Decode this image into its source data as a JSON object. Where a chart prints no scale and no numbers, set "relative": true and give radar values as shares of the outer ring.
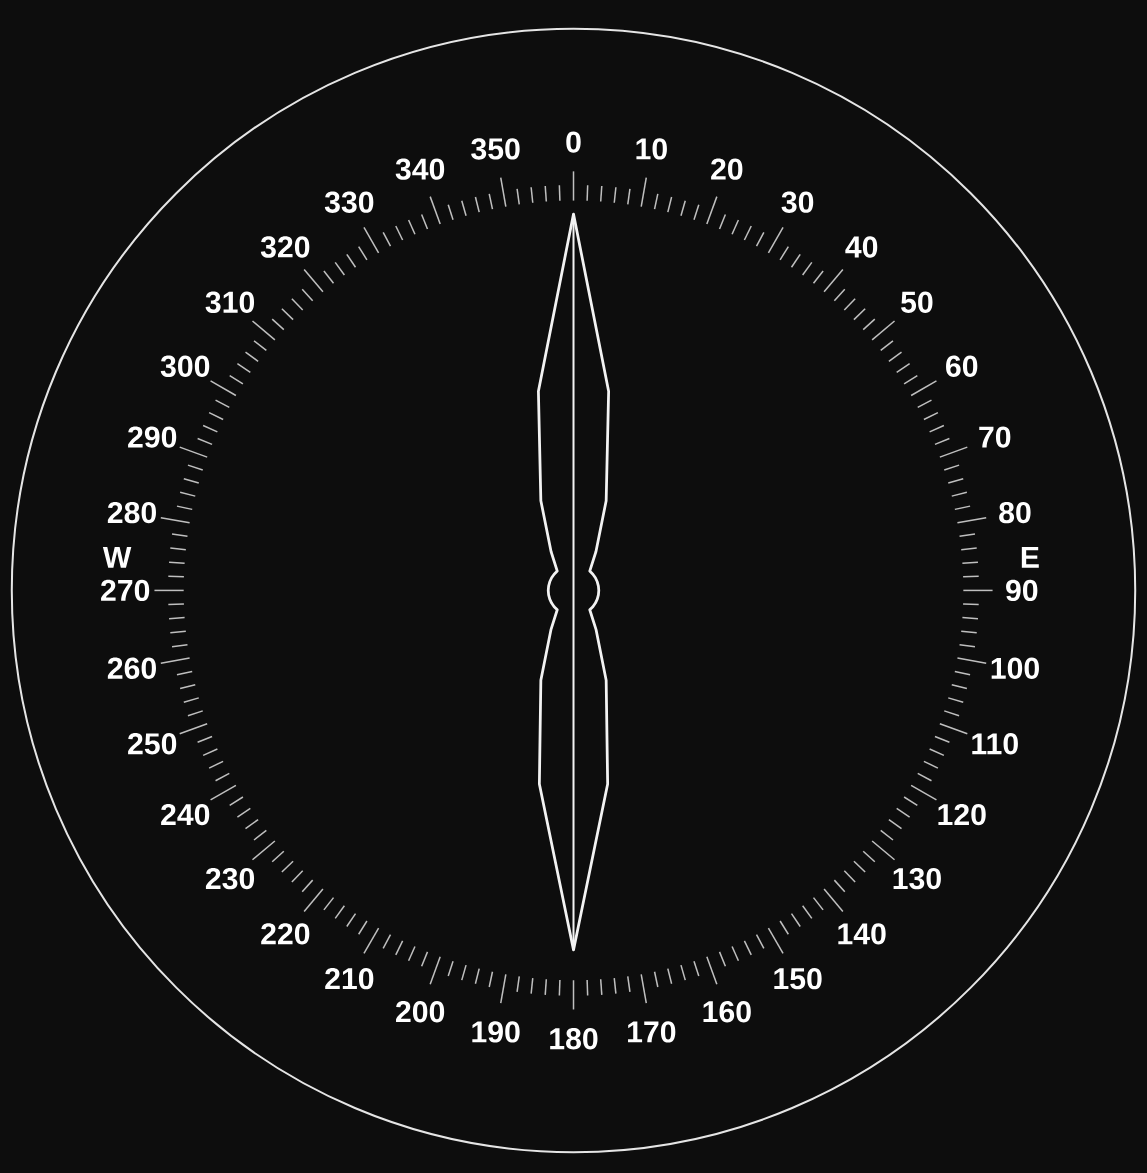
{
  "chart_data": {
    "type": "radar",
    "categories": [
      "0",
      "10",
      "20",
      "30",
      "40",
      "50",
      "60",
      "70",
      "80",
      "90",
      "100",
      "110",
      "120",
      "130",
      "140",
      "150",
      "160",
      "170",
      "180",
      "190",
      "200",
      "210",
      "220",
      "230",
      "240",
      "250",
      "260",
      "270",
      "280",
      "290",
      "300",
      "310",
      "320",
      "330",
      "340",
      "350"
    ],
    "relative": true,
    "series": [
      {
        "color": "#f2f2f2",
        "values": [
          0.67,
          0.36,
          0.17,
          0.08,
          0.045,
          0.045,
          0.045,
          0.045,
          0.045,
          0.045,
          0.045,
          0.045,
          0.045,
          0.045,
          0.045,
          0.08,
          0.17,
          0.35,
          0.64,
          0.35,
          0.17,
          0.08,
          0.045,
          0.045,
          0.045,
          0.045,
          0.045,
          0.045,
          0.045,
          0.045,
          0.045,
          0.045,
          0.045,
          0.08,
          0.17,
          0.36
        ]
      }
    ],
    "annotations": [
      "W",
      "E"
    ]
  }
}
